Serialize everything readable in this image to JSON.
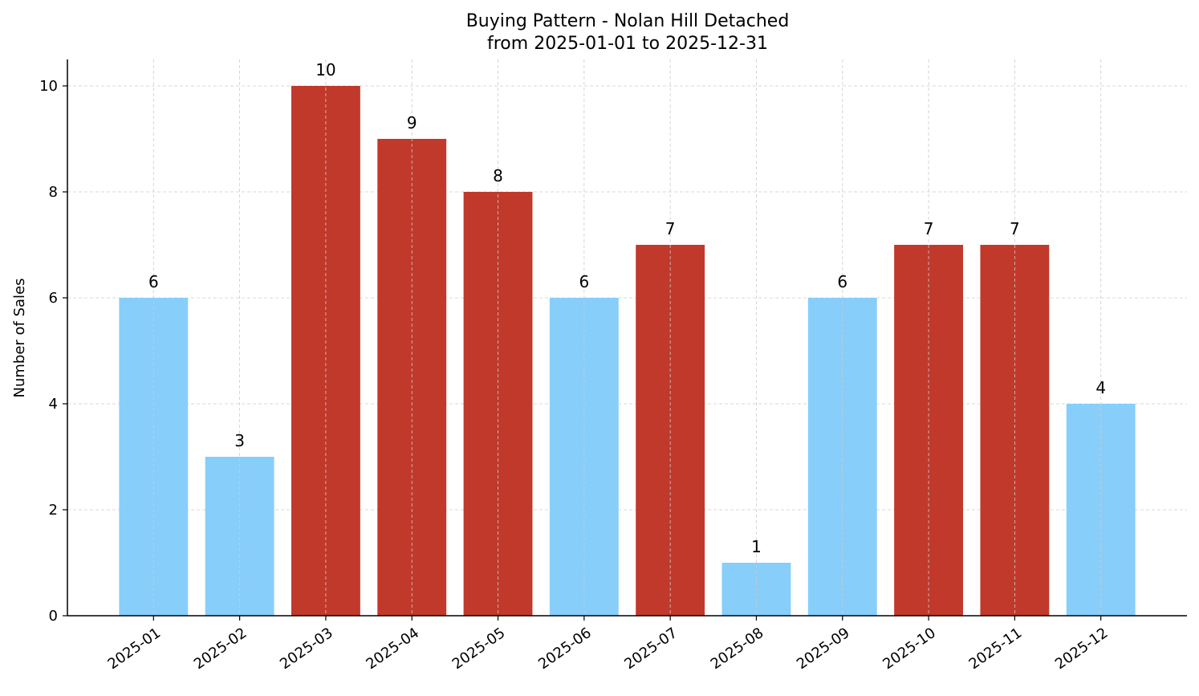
{
  "chart_data": {
    "type": "bar",
    "title": "Buying Pattern - Nolan Hill Detached",
    "subtitle": "from 2025-01-01 to 2025-12-31",
    "xlabel": "",
    "ylabel": "Number of Sales",
    "categories": [
      "2025-01",
      "2025-02",
      "2025-03",
      "2025-04",
      "2025-05",
      "2025-06",
      "2025-07",
      "2025-08",
      "2025-09",
      "2025-10",
      "2025-11",
      "2025-12"
    ],
    "values": [
      6,
      3,
      10,
      9,
      8,
      6,
      7,
      1,
      6,
      7,
      7,
      4
    ],
    "bar_colors": [
      "#87CEFA",
      "#87CEFA",
      "#C0392B",
      "#C0392B",
      "#C0392B",
      "#87CEFA",
      "#C0392B",
      "#87CEFA",
      "#87CEFA",
      "#C0392B",
      "#C0392B",
      "#87CEFA"
    ],
    "ylim": [
      0,
      10.5
    ],
    "yticks": [
      0,
      2,
      4,
      6,
      8,
      10
    ],
    "grid": true,
    "data_labels": true
  }
}
